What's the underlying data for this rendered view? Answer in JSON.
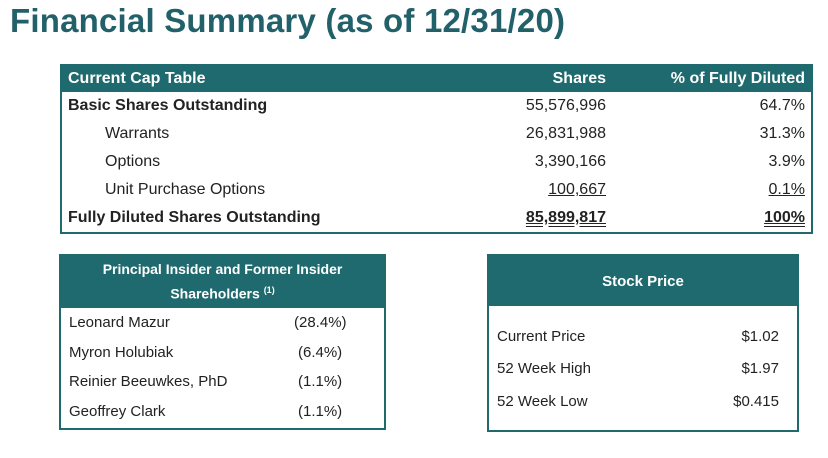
{
  "title": "Financial Summary (as of 12/31/20)",
  "cap_table": {
    "headers": [
      "Current Cap Table",
      "Shares",
      "% of Fully Diluted"
    ],
    "rows": [
      {
        "label": "Basic Shares Outstanding",
        "shares": "55,576,996",
        "pct": "64.7%"
      },
      {
        "label": "Warrants",
        "shares": "26,831,988",
        "pct": "31.3%"
      },
      {
        "label": "Options",
        "shares": "3,390,166",
        "pct": "3.9%"
      },
      {
        "label": "Unit Purchase Options",
        "shares": "100,667",
        "pct": "0.1%"
      },
      {
        "label": "Fully Diluted Shares Outstanding",
        "shares": "85,899,817",
        "pct": "100%"
      }
    ]
  },
  "insiders": {
    "header": "Principal Insider and Former Insider Shareholders",
    "footnote": "(1)",
    "rows": [
      {
        "name": "Leonard Mazur",
        "pct": "(28.4%)"
      },
      {
        "name": "Myron Holubiak",
        "pct": "(6.4%)"
      },
      {
        "name": "Reinier Beeuwkes, PhD",
        "pct": "(1.1%)"
      },
      {
        "name": "Geoffrey Clark",
        "pct": "(1.1%)"
      }
    ]
  },
  "stock_price": {
    "header": "Stock Price",
    "rows": [
      {
        "label": "Current Price",
        "value": "$1.02"
      },
      {
        "label": "52 Week High",
        "value": "$1.97"
      },
      {
        "label": "52 Week Low",
        "value": "$0.415"
      }
    ]
  },
  "colors": {
    "accent": "#1f6a6e",
    "title": "#22606a"
  }
}
